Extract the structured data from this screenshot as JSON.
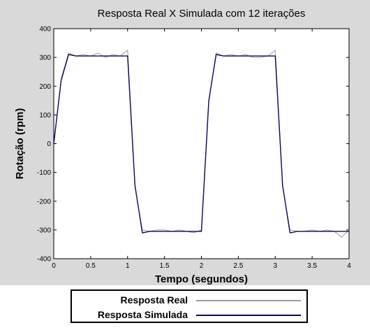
{
  "chart_data": {
    "type": "line",
    "title": "Resposta Real X Simulada com 12 iterações",
    "xlabel": "Tempo (segundos)",
    "ylabel": "Rotação (rpm)",
    "xlim": [
      0,
      4
    ],
    "ylim": [
      -400,
      400
    ],
    "xticks": [
      0,
      0.5,
      1,
      1.5,
      2,
      2.5,
      3,
      3.5,
      4
    ],
    "xtick_labels": [
      "0",
      "0.5",
      "1",
      "1.5",
      "2",
      "2.5",
      "3",
      "3.5",
      "4"
    ],
    "yticks": [
      -400,
      -300,
      -200,
      -100,
      0,
      100,
      200,
      300,
      400
    ],
    "ytick_labels": [
      "-400",
      "-300",
      "-200",
      "-100",
      "0",
      "100",
      "200",
      "300",
      "400"
    ],
    "grid": false,
    "legend_position": "bottom",
    "series": [
      {
        "name": "Resposta Real",
        "color": "#9a9a9a",
        "x": [
          0,
          0.1,
          0.2,
          0.3,
          0.4,
          0.5,
          0.6,
          0.7,
          0.8,
          0.9,
          1.0,
          1.1,
          1.2,
          1.3,
          1.4,
          1.5,
          1.6,
          1.7,
          1.8,
          1.9,
          2.0,
          2.1,
          2.2,
          2.3,
          2.4,
          2.5,
          2.6,
          2.7,
          2.8,
          2.9,
          3.0,
          3.1,
          3.2,
          3.3,
          3.4,
          3.5,
          3.6,
          3.7,
          3.8,
          3.9,
          4.0
        ],
        "values": [
          0,
          225,
          315,
          305,
          310,
          305,
          315,
          300,
          310,
          305,
          325,
          -150,
          -300,
          -305,
          -300,
          -300,
          -305,
          -300,
          -305,
          -310,
          -300,
          145,
          315,
          305,
          310,
          305,
          310,
          300,
          300,
          305,
          325,
          -150,
          -300,
          -305,
          -305,
          -300,
          -305,
          -300,
          -305,
          -325,
          -300
        ]
      },
      {
        "name": "Resposta Simulada",
        "color": "#0a0a55",
        "x": [
          0,
          0.1,
          0.2,
          0.3,
          0.4,
          0.5,
          0.6,
          0.7,
          0.8,
          0.9,
          1.0,
          1.1,
          1.2,
          1.3,
          1.4,
          1.5,
          1.6,
          1.7,
          1.8,
          1.9,
          2.0,
          2.1,
          2.2,
          2.3,
          2.4,
          2.5,
          2.6,
          2.7,
          2.8,
          2.9,
          3.0,
          3.1,
          3.2,
          3.3,
          3.4,
          3.5,
          3.6,
          3.7,
          3.8,
          3.9,
          4.0
        ],
        "values": [
          0,
          220,
          310,
          305,
          305,
          305,
          305,
          305,
          305,
          305,
          305,
          -145,
          -310,
          -305,
          -305,
          -305,
          -305,
          -305,
          -305,
          -305,
          -305,
          150,
          310,
          305,
          305,
          305,
          305,
          305,
          305,
          305,
          305,
          -145,
          -310,
          -305,
          -305,
          -305,
          -305,
          -305,
          -305,
          -305,
          -305
        ]
      }
    ]
  }
}
